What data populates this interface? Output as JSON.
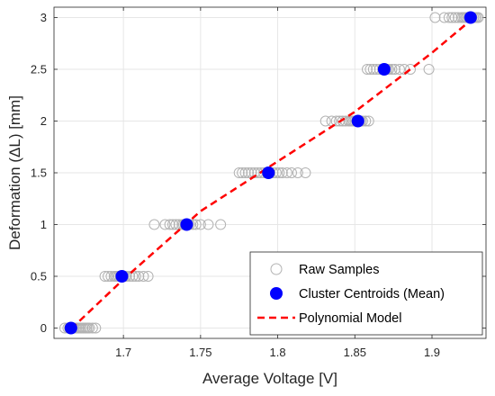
{
  "chart_data": {
    "type": "scatter",
    "xlabel": "Average Voltage [V]",
    "ylabel": "Deformation (ΔL) [mm]",
    "xlim": [
      1.655,
      1.935
    ],
    "ylim": [
      -0.1,
      3.1
    ],
    "x_ticks": [
      "1.7",
      "1.75",
      "1.8",
      "1.85",
      "1.9"
    ],
    "x_tick_values": [
      1.7,
      1.75,
      1.8,
      1.85,
      1.9
    ],
    "y_ticks": [
      "0",
      "0.5",
      "1",
      "1.5",
      "2",
      "2.5",
      "3"
    ],
    "y_tick_values": [
      0,
      0.5,
      1,
      1.5,
      2,
      2.5,
      3
    ],
    "grid": true,
    "legend_position": "bottom-right",
    "colors": {
      "raw": "#b3b3b3",
      "centroid": "#0000ff",
      "model": "#ff0000",
      "grid": "#e6e6e6",
      "axis": "#262626"
    },
    "series": [
      {
        "name": "Raw Samples",
        "kind": "scatter-hollow",
        "points": [
          [
            1.662,
            0
          ],
          [
            1.664,
            0
          ],
          [
            1.665,
            0
          ],
          [
            1.666,
            0
          ],
          [
            1.667,
            0
          ],
          [
            1.668,
            0
          ],
          [
            1.669,
            0
          ],
          [
            1.67,
            0
          ],
          [
            1.671,
            0
          ],
          [
            1.672,
            0
          ],
          [
            1.673,
            0
          ],
          [
            1.674,
            0
          ],
          [
            1.675,
            0
          ],
          [
            1.676,
            0
          ],
          [
            1.677,
            0
          ],
          [
            1.678,
            0
          ],
          [
            1.68,
            0
          ],
          [
            1.682,
            0
          ],
          [
            1.688,
            0.5
          ],
          [
            1.69,
            0.5
          ],
          [
            1.692,
            0.5
          ],
          [
            1.694,
            0.5
          ],
          [
            1.695,
            0.5
          ],
          [
            1.696,
            0.5
          ],
          [
            1.697,
            0.5
          ],
          [
            1.698,
            0.5
          ],
          [
            1.699,
            0.5
          ],
          [
            1.7,
            0.5
          ],
          [
            1.701,
            0.5
          ],
          [
            1.702,
            0.5
          ],
          [
            1.704,
            0.5
          ],
          [
            1.706,
            0.5
          ],
          [
            1.708,
            0.5
          ],
          [
            1.71,
            0.5
          ],
          [
            1.713,
            0.5
          ],
          [
            1.716,
            0.5
          ],
          [
            1.72,
            1
          ],
          [
            1.727,
            1
          ],
          [
            1.73,
            1
          ],
          [
            1.732,
            1
          ],
          [
            1.734,
            1
          ],
          [
            1.736,
            1
          ],
          [
            1.738,
            1
          ],
          [
            1.739,
            1
          ],
          [
            1.74,
            1
          ],
          [
            1.741,
            1
          ],
          [
            1.742,
            1
          ],
          [
            1.743,
            1
          ],
          [
            1.745,
            1
          ],
          [
            1.747,
            1
          ],
          [
            1.75,
            1
          ],
          [
            1.755,
            1
          ],
          [
            1.763,
            1
          ],
          [
            1.775,
            1.5
          ],
          [
            1.777,
            1.5
          ],
          [
            1.779,
            1.5
          ],
          [
            1.781,
            1.5
          ],
          [
            1.783,
            1.5
          ],
          [
            1.785,
            1.5
          ],
          [
            1.787,
            1.5
          ],
          [
            1.789,
            1.5
          ],
          [
            1.791,
            1.5
          ],
          [
            1.793,
            1.5
          ],
          [
            1.795,
            1.5
          ],
          [
            1.797,
            1.5
          ],
          [
            1.799,
            1.5
          ],
          [
            1.801,
            1.5
          ],
          [
            1.803,
            1.5
          ],
          [
            1.806,
            1.5
          ],
          [
            1.809,
            1.5
          ],
          [
            1.813,
            1.5
          ],
          [
            1.818,
            1.5
          ],
          [
            1.831,
            2
          ],
          [
            1.835,
            2
          ],
          [
            1.838,
            2
          ],
          [
            1.84,
            2
          ],
          [
            1.842,
            2
          ],
          [
            1.844,
            2
          ],
          [
            1.846,
            2
          ],
          [
            1.847,
            2
          ],
          [
            1.848,
            2
          ],
          [
            1.849,
            2
          ],
          [
            1.85,
            2
          ],
          [
            1.851,
            2
          ],
          [
            1.852,
            2
          ],
          [
            1.853,
            2
          ],
          [
            1.854,
            2
          ],
          [
            1.855,
            2
          ],
          [
            1.857,
            2
          ],
          [
            1.859,
            2
          ],
          [
            1.858,
            2.5
          ],
          [
            1.86,
            2.5
          ],
          [
            1.862,
            2.5
          ],
          [
            1.864,
            2.5
          ],
          [
            1.866,
            2.5
          ],
          [
            1.868,
            2.5
          ],
          [
            1.869,
            2.5
          ],
          [
            1.87,
            2.5
          ],
          [
            1.871,
            2.5
          ],
          [
            1.872,
            2.5
          ],
          [
            1.874,
            2.5
          ],
          [
            1.876,
            2.5
          ],
          [
            1.879,
            2.5
          ],
          [
            1.882,
            2.5
          ],
          [
            1.886,
            2.5
          ],
          [
            1.898,
            2.5
          ],
          [
            1.902,
            3
          ],
          [
            1.908,
            3
          ],
          [
            1.911,
            3
          ],
          [
            1.913,
            3
          ],
          [
            1.915,
            3
          ],
          [
            1.917,
            3
          ],
          [
            1.919,
            3
          ],
          [
            1.92,
            3
          ],
          [
            1.921,
            3
          ],
          [
            1.922,
            3
          ],
          [
            1.923,
            3
          ],
          [
            1.924,
            3
          ],
          [
            1.925,
            3
          ],
          [
            1.926,
            3
          ],
          [
            1.927,
            3
          ],
          [
            1.928,
            3
          ],
          [
            1.929,
            3
          ],
          [
            1.93,
            3
          ]
        ]
      },
      {
        "name": "Cluster Centroids (Mean)",
        "kind": "scatter-filled",
        "points": [
          [
            1.666,
            0
          ],
          [
            1.699,
            0.5
          ],
          [
            1.741,
            1
          ],
          [
            1.794,
            1.5
          ],
          [
            1.852,
            2
          ],
          [
            1.869,
            2.5
          ],
          [
            1.925,
            3
          ]
        ]
      },
      {
        "name": "Polynomial Model",
        "kind": "line-dashed",
        "points": [
          [
            1.666,
            -0.01
          ],
          [
            1.7,
            0.47
          ],
          [
            1.75,
            1.13
          ],
          [
            1.8,
            1.61
          ],
          [
            1.85,
            2.09
          ],
          [
            1.9,
            2.66
          ],
          [
            1.928,
            3.01
          ]
        ]
      }
    ]
  }
}
